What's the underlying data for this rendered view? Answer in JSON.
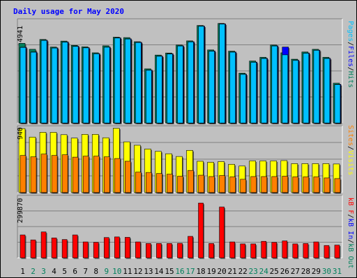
{
  "title": "Daily usage for May 2020",
  "colors": {
    "background": "#c0c0c0",
    "title": "#0000ff",
    "hits": "#00805c",
    "files": "#0000ff",
    "pages": "#00c0ff",
    "visits": "#ffff00",
    "sites": "#ff8000",
    "kb_in": "#0000ff",
    "kb_out": "#00805c",
    "kb_f": "#ff0000",
    "weekend_tick": "#00805c"
  },
  "legend": {
    "top": {
      "pages": "Pages",
      "files": "Files",
      "hits": "Hits",
      "sep": "/"
    },
    "middle": {
      "sites": "Sites",
      "visits": "Visits",
      "sep": "/"
    },
    "bottom": {
      "kbf": "kB F",
      "kbin": "kB In",
      "kbout": "kB Out",
      "sep": "/"
    }
  },
  "chart_data": [
    {
      "type": "bar",
      "categories": [
        "1",
        "2",
        "3",
        "4",
        "5",
        "6",
        "7",
        "8",
        "9",
        "10",
        "11",
        "12",
        "13",
        "14",
        "15",
        "16",
        "17",
        "18",
        "19",
        "20",
        "21",
        "22",
        "23",
        "24",
        "25",
        "26",
        "27",
        "28",
        "29",
        "30",
        "31"
      ],
      "weekend_categories": [
        "2",
        "3",
        "9",
        "10",
        "16",
        "17",
        "23",
        "24",
        "30",
        "31"
      ],
      "ymax_label": "4941",
      "ylim": [
        0,
        4941
      ],
      "series": [
        {
          "name": "Hits",
          "values": [
            3880,
            3590,
            4070,
            3700,
            3990,
            3780,
            3710,
            3420,
            3760,
            4180,
            4160,
            3960,
            2640,
            3310,
            3410,
            3800,
            4000,
            4750,
            3560,
            4850,
            3500,
            2430,
            3020,
            3200,
            3800,
            3420,
            3110,
            3460,
            3590,
            3200,
            1940
          ]
        },
        {
          "name": "Files",
          "values": [
            3690,
            3460,
            4030,
            3660,
            3950,
            3740,
            3670,
            3380,
            3700,
            4150,
            4100,
            3930,
            2580,
            3260,
            3370,
            3760,
            3960,
            4720,
            3510,
            4830,
            3460,
            2380,
            2970,
            3150,
            3760,
            3700,
            3060,
            3410,
            3550,
            3150,
            1880
          ]
        },
        {
          "name": "Pages",
          "values": [
            3680,
            3450,
            4020,
            3650,
            3940,
            3730,
            3660,
            3370,
            3690,
            4140,
            4090,
            3920,
            2570,
            3250,
            3360,
            3750,
            3950,
            4710,
            3500,
            4820,
            3450,
            2370,
            2960,
            3140,
            3750,
            3320,
            3050,
            3400,
            3540,
            3140,
            1870
          ]
        }
      ],
      "grid": true
    },
    {
      "type": "bar",
      "categories": [
        "1",
        "2",
        "3",
        "4",
        "5",
        "6",
        "7",
        "8",
        "9",
        "10",
        "11",
        "12",
        "13",
        "14",
        "15",
        "16",
        "17",
        "18",
        "19",
        "20",
        "21",
        "22",
        "23",
        "24",
        "25",
        "26",
        "27",
        "28",
        "29",
        "30",
        "31"
      ],
      "ymax_label": "940",
      "ylim": [
        0,
        940
      ],
      "series": [
        {
          "name": "Visits",
          "values": [
            940,
            815,
            885,
            885,
            850,
            800,
            855,
            855,
            805,
            945,
            745,
            695,
            640,
            605,
            570,
            530,
            620,
            460,
            445,
            455,
            415,
            390,
            465,
            465,
            465,
            470,
            425,
            425,
            425,
            425,
            420
          ]
        },
        {
          "name": "Sites",
          "values": [
            545,
            525,
            565,
            545,
            555,
            520,
            535,
            535,
            525,
            500,
            460,
            300,
            295,
            280,
            270,
            240,
            325,
            255,
            235,
            250,
            230,
            195,
            235,
            235,
            235,
            240,
            230,
            230,
            230,
            215,
            205
          ]
        }
      ],
      "grid": true
    },
    {
      "type": "bar",
      "categories": [
        "1",
        "2",
        "3",
        "4",
        "5",
        "6",
        "7",
        "8",
        "9",
        "10",
        "11",
        "12",
        "13",
        "14",
        "15",
        "16",
        "17",
        "18",
        "19",
        "20",
        "21",
        "22",
        "23",
        "24",
        "25",
        "26",
        "27",
        "28",
        "29",
        "30",
        "31"
      ],
      "ymax_label": "299870",
      "ylim": [
        0,
        299870
      ],
      "series": [
        {
          "name": "kB F",
          "values": [
            115000,
            90000,
            130000,
            100000,
            92000,
            115000,
            80000,
            78000,
            102000,
            105000,
            103000,
            80000,
            72000,
            72000,
            72000,
            73000,
            108000,
            275000,
            72000,
            255000,
            80000,
            70000,
            70000,
            83000,
            78000,
            85000,
            70000,
            72000,
            80000,
            62000,
            64000
          ]
        },
        {
          "name": "kB In",
          "values": [
            0,
            0,
            0,
            0,
            0,
            0,
            0,
            0,
            0,
            0,
            0,
            0,
            0,
            0,
            0,
            0,
            0,
            0,
            0,
            0,
            0,
            0,
            0,
            0,
            0,
            0,
            0,
            0,
            0,
            0,
            0
          ]
        },
        {
          "name": "kB Out",
          "values": [
            0,
            0,
            0,
            0,
            0,
            0,
            0,
            0,
            0,
            0,
            0,
            0,
            0,
            0,
            0,
            0,
            0,
            0,
            0,
            0,
            0,
            0,
            0,
            0,
            0,
            0,
            0,
            0,
            0,
            0,
            0
          ]
        }
      ],
      "grid": true
    }
  ]
}
